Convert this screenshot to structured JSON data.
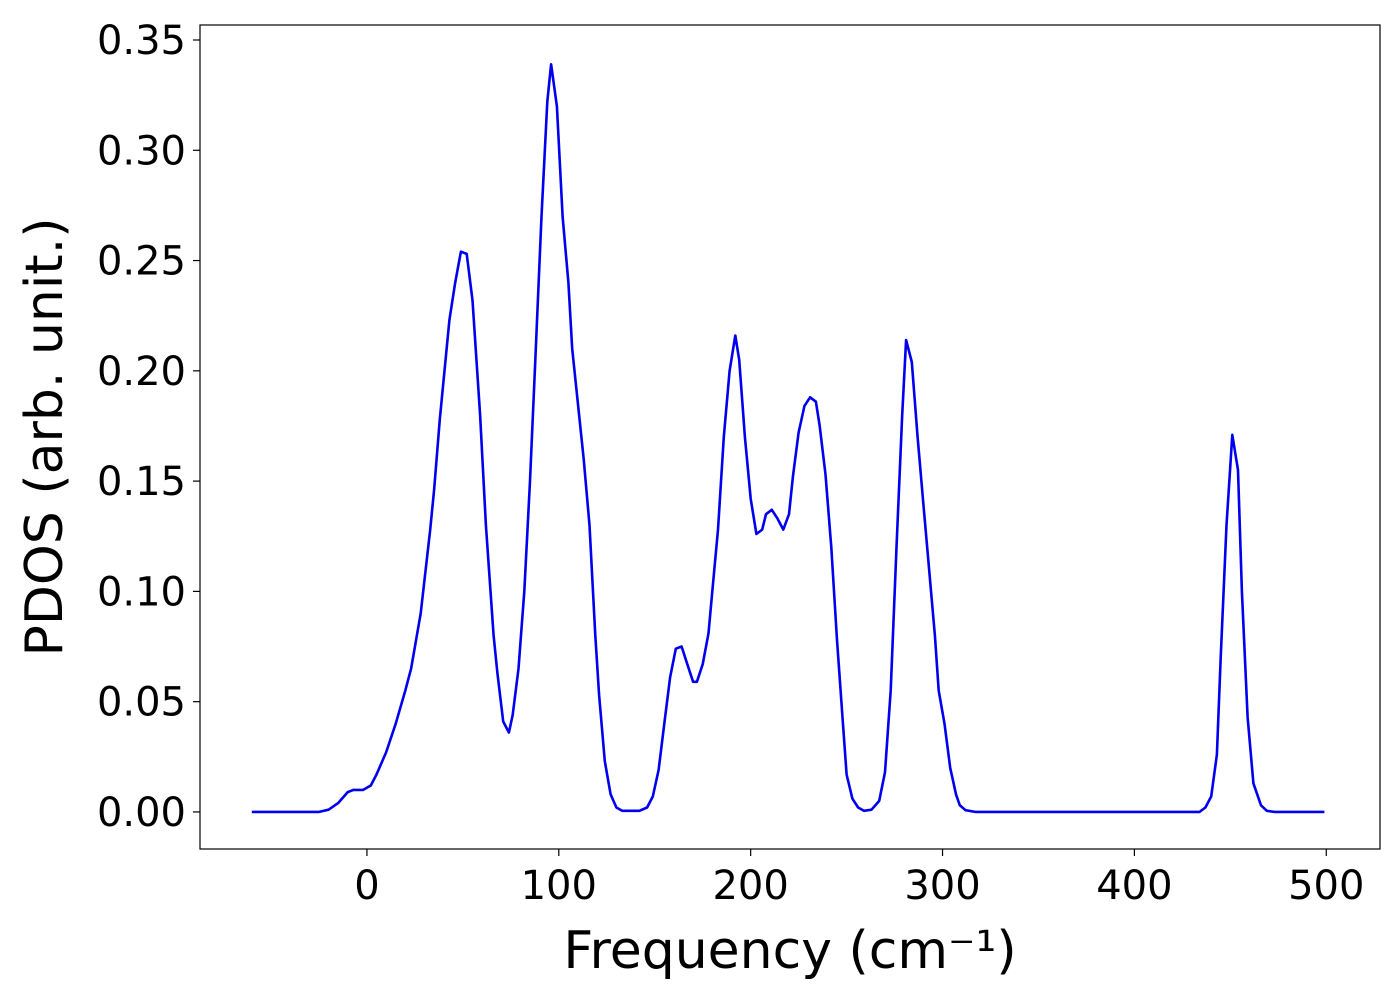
{
  "chart_data": {
    "type": "line",
    "xlabel": "Frequency (cm⁻¹)",
    "ylabel": "PDOS (arb. unit.)",
    "x": [
      -60,
      -25,
      -20,
      -15,
      -10,
      -7,
      -2,
      2,
      5,
      10,
      15,
      20,
      23,
      28,
      33,
      35,
      38,
      43,
      46,
      49,
      52,
      55,
      59,
      62,
      66,
      68,
      71,
      74,
      76,
      79,
      82,
      85,
      88,
      91,
      94,
      96,
      99,
      102,
      105,
      107,
      113,
      116,
      119,
      121,
      124,
      127,
      130,
      133,
      142,
      146,
      149,
      152,
      155,
      158,
      161,
      164,
      167,
      170,
      172,
      175,
      178,
      180,
      183,
      186,
      189,
      192,
      194,
      197,
      200,
      203,
      206,
      208,
      211,
      214,
      217,
      220,
      222,
      225,
      228,
      231,
      234,
      236,
      239,
      242,
      245,
      248,
      250,
      253,
      256,
      259,
      263,
      267,
      270,
      273,
      276,
      279,
      281,
      284,
      287,
      290,
      293,
      296,
      298,
      301,
      304,
      307,
      309,
      312,
      317,
      434,
      437,
      440,
      443,
      445,
      448,
      451,
      454,
      456,
      459,
      462,
      466,
      469,
      473,
      499
    ],
    "series": [
      {
        "name": "PDOS",
        "color": "#0000ee",
        "values": [
          0,
          0,
          0.001,
          0.004,
          0.009,
          0.01,
          0.01,
          0.012,
          0.017,
          0.027,
          0.04,
          0.055,
          0.065,
          0.09,
          0.128,
          0.146,
          0.178,
          0.223,
          0.24,
          0.254,
          0.253,
          0.232,
          0.18,
          0.13,
          0.08,
          0.063,
          0.041,
          0.036,
          0.044,
          0.065,
          0.1,
          0.15,
          0.21,
          0.27,
          0.322,
          0.339,
          0.32,
          0.27,
          0.24,
          0.21,
          0.16,
          0.13,
          0.08,
          0.053,
          0.023,
          0.008,
          0.002,
          0.0005,
          0.0005,
          0.002,
          0.007,
          0.019,
          0.04,
          0.061,
          0.074,
          0.075,
          0.067,
          0.059,
          0.059,
          0.067,
          0.081,
          0.1,
          0.128,
          0.17,
          0.2,
          0.216,
          0.205,
          0.17,
          0.142,
          0.126,
          0.128,
          0.135,
          0.137,
          0.133,
          0.128,
          0.135,
          0.152,
          0.172,
          0.184,
          0.188,
          0.186,
          0.175,
          0.153,
          0.12,
          0.078,
          0.041,
          0.017,
          0.006,
          0.002,
          0.0005,
          0.001,
          0.005,
          0.018,
          0.055,
          0.12,
          0.18,
          0.214,
          0.204,
          0.17,
          0.14,
          0.11,
          0.08,
          0.055,
          0.04,
          0.02,
          0.008,
          0.003,
          0.0008,
          0,
          0,
          0.002,
          0.007,
          0.026,
          0.07,
          0.13,
          0.171,
          0.155,
          0.1,
          0.043,
          0.013,
          0.003,
          0.0005,
          0,
          0
        ]
      }
    ],
    "xlim": [
      -87,
      528
    ],
    "ylim": [
      -0.0168,
      0.3568
    ],
    "xticks": [
      0,
      100,
      200,
      300,
      400,
      500
    ],
    "yticks": [
      {
        "value": 0,
        "label": "0.00"
      },
      {
        "value": 0.05,
        "label": "0.05"
      },
      {
        "value": 0.1,
        "label": "0.10"
      },
      {
        "value": 0.15,
        "label": "0.15"
      },
      {
        "value": 0.2,
        "label": "0.20"
      },
      {
        "value": 0.25,
        "label": "0.25"
      },
      {
        "value": 0.3,
        "label": "0.30"
      },
      {
        "value": 0.35,
        "label": "0.35"
      }
    ]
  }
}
